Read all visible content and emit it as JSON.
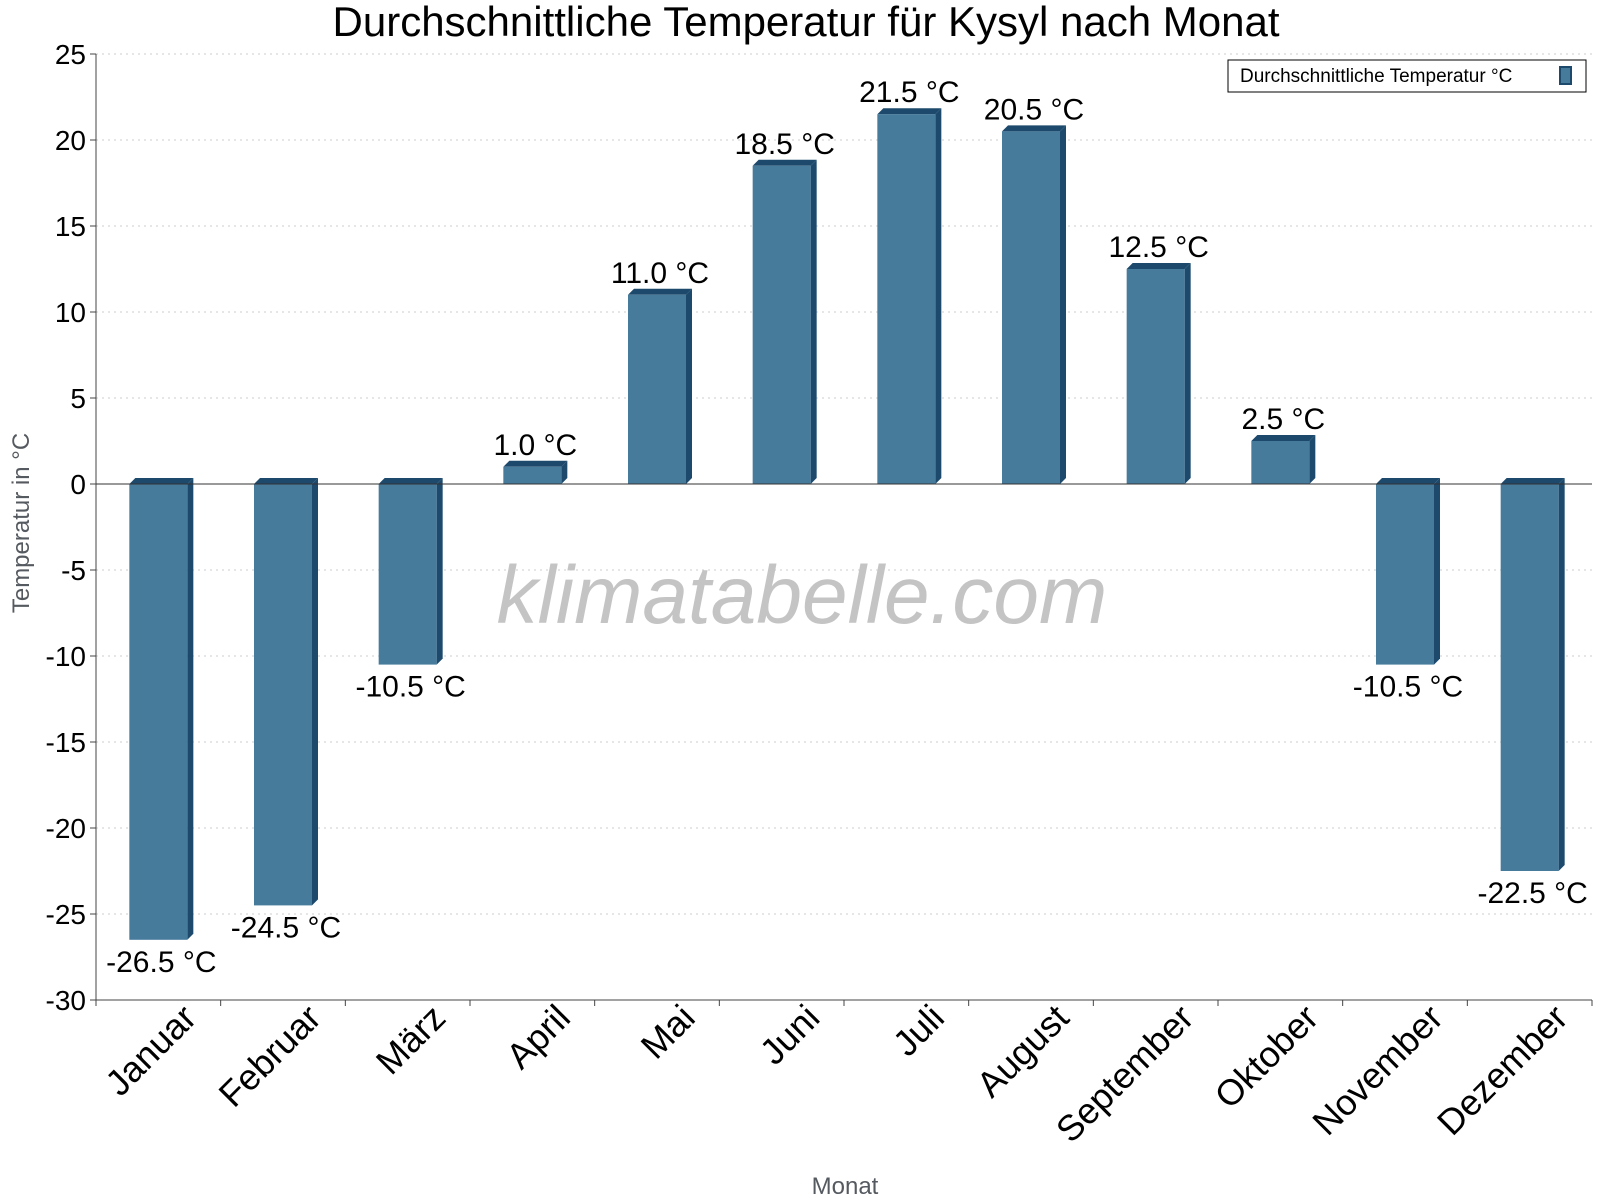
{
  "chart_data": {
    "type": "bar",
    "title": "Durchschnittliche Temperatur für Kysyl nach Monat",
    "xlabel": "Monat",
    "ylabel": "Temperatur in °C",
    "ylim": [
      -30,
      25
    ],
    "yticks": [
      25,
      20,
      15,
      10,
      5,
      0,
      -5,
      -10,
      -15,
      -20,
      -25,
      -30
    ],
    "grid": true,
    "legend_position": "top-right",
    "watermark": "klimatabelle.com",
    "categories": [
      "Januar",
      "Februar",
      "März",
      "April",
      "Mai",
      "Juni",
      "Juli",
      "August",
      "September",
      "Oktober",
      "November",
      "Dezember"
    ],
    "series": [
      {
        "name": "Durchschnittliche Temperatur °C",
        "values": [
          -26.5,
          -24.5,
          -10.5,
          1.0,
          11.0,
          18.5,
          21.5,
          20.5,
          12.5,
          2.5,
          -10.5,
          -22.5
        ],
        "labels": [
          "-26.5 °C",
          "-24.5 °C",
          "-10.5 °C",
          "1.0 °C",
          "11.0 °C",
          "18.5 °C",
          "21.5 °C",
          "20.5 °C",
          "12.5 °C",
          "2.5 °C",
          "-10.5 °C",
          "-22.5 °C"
        ]
      }
    ],
    "colors": {
      "bar_front": "#477b9c",
      "bar_side": "#1d4a6c",
      "bar_top": "#1d4a6c",
      "grid": "#cccccc",
      "axis": "#444444"
    }
  }
}
